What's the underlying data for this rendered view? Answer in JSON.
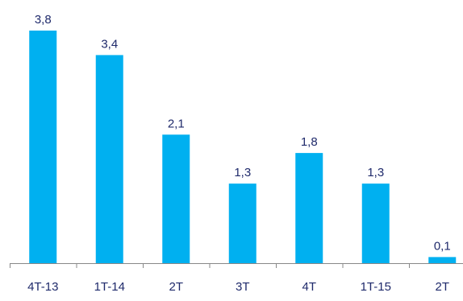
{
  "chart_data": {
    "type": "bar",
    "categories": [
      "4T-13",
      "1T-14",
      "2T",
      "3T",
      "4T",
      "1T-15",
      "2T"
    ],
    "values": [
      3.8,
      3.4,
      2.1,
      1.3,
      1.8,
      1.3,
      0.1
    ],
    "value_labels": [
      "3,8",
      "3,4",
      "2,1",
      "1,3",
      "1,8",
      "1,3",
      "0,1"
    ],
    "title": "",
    "xlabel": "",
    "ylabel": "",
    "ylim": [
      0,
      3.8
    ],
    "grid": false,
    "legend": "none",
    "colors": {
      "bar": "#00B0F0",
      "text": "#1F2A6B",
      "axis": "#888888"
    }
  }
}
